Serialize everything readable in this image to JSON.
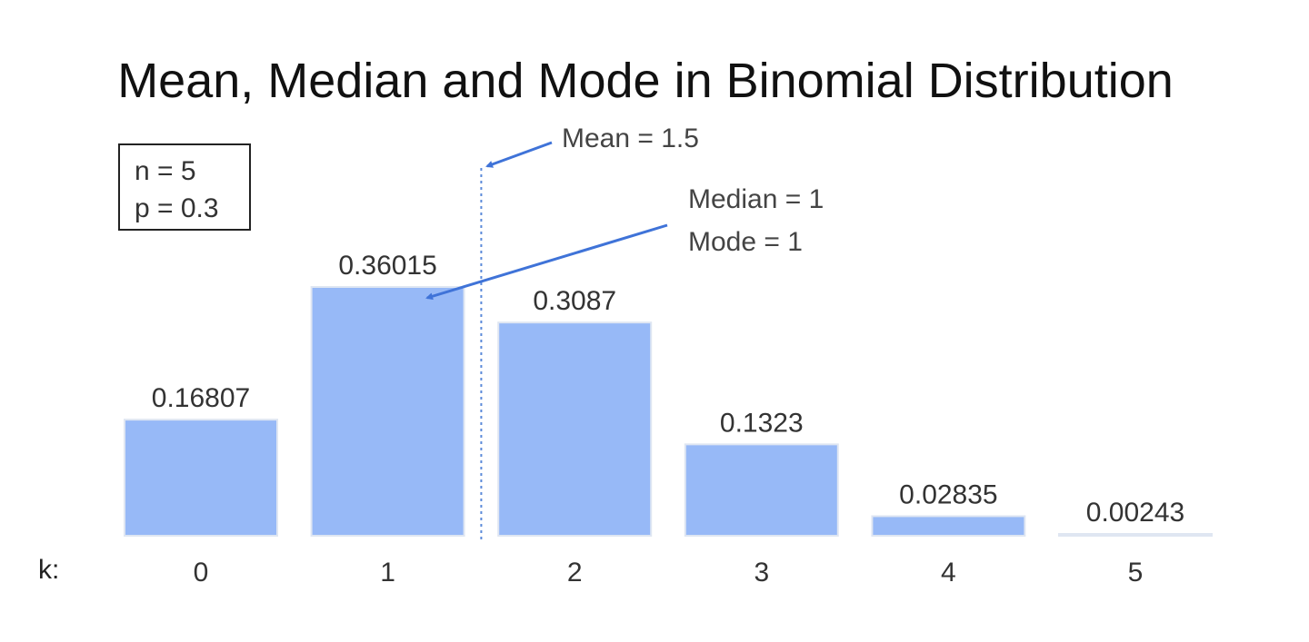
{
  "chart_data": {
    "type": "bar",
    "title": "Mean, Median and Mode in Binomial Distribution",
    "xlabel": "k:",
    "categories": [
      "0",
      "1",
      "2",
      "3",
      "4",
      "5"
    ],
    "values": [
      0.16807,
      0.36015,
      0.3087,
      0.1323,
      0.02835,
      0.00243
    ],
    "value_labels": [
      "0.16807",
      "0.36015",
      "0.3087",
      "0.1323",
      "0.02835",
      "0.00243"
    ],
    "ylim": [
      0,
      0.37
    ],
    "grid": false,
    "params": [
      "n = 5",
      "p = 0.3"
    ],
    "mean_value": 1.5,
    "annotations": {
      "mean": "Mean = 1.5",
      "median": "Median = 1",
      "mode": "Mode = 1"
    },
    "colors": {
      "bar": "#97b9f7",
      "bar_border": "#dfe6f2",
      "arrow": "#3f73d8",
      "mean_line": "#5b8ad9"
    }
  }
}
